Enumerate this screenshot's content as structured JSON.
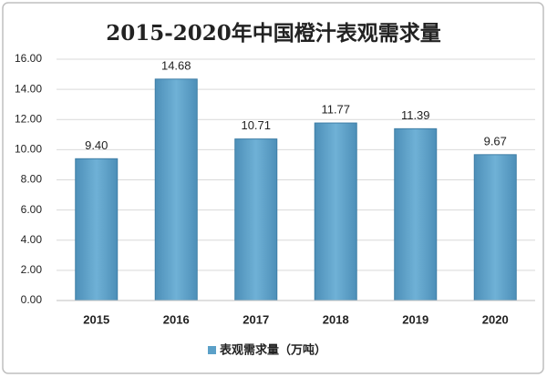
{
  "chart_data": {
    "type": "bar",
    "title": "2015-2020年中国橙汁表观需求量",
    "categories": [
      "2015",
      "2016",
      "2017",
      "2018",
      "2019",
      "2020"
    ],
    "series": [
      {
        "name": "表观需求量（万吨）",
        "color": "#5ba0c8",
        "values": [
          9.4,
          14.68,
          10.71,
          11.77,
          11.39,
          9.67
        ],
        "value_labels": [
          "9.40",
          "14.68",
          "10.71",
          "11.77",
          "11.39",
          "9.67"
        ]
      }
    ],
    "ylim": [
      0,
      16
    ],
    "yticks": [
      {
        "value": 0,
        "label": "0.00"
      },
      {
        "value": 2,
        "label": "2.00"
      },
      {
        "value": 4,
        "label": "4.00"
      },
      {
        "value": 6,
        "label": "6.00"
      },
      {
        "value": 8,
        "label": "8.00"
      },
      {
        "value": 10,
        "label": "10.00"
      },
      {
        "value": 12,
        "label": "12.00"
      },
      {
        "value": 14,
        "label": "14.00"
      },
      {
        "value": 16,
        "label": "16.00"
      }
    ],
    "grid": true,
    "legend": "bottom"
  }
}
